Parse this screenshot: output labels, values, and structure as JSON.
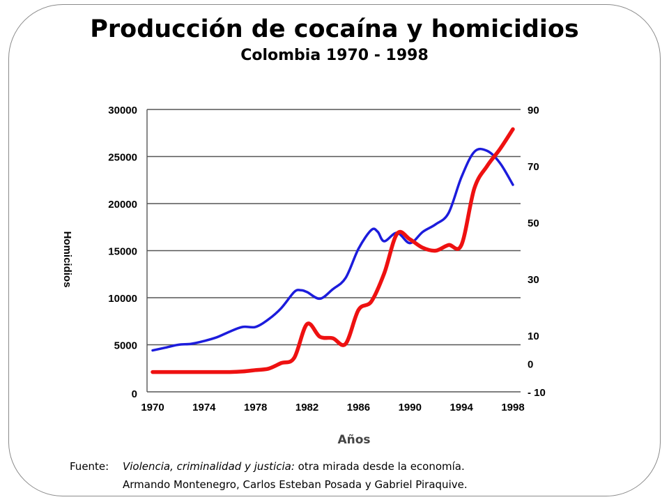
{
  "chart_data": {
    "type": "line",
    "title": "Producción de cocaína y homicidios",
    "subtitle": "Colombia 1970 - 1998",
    "xlabel": "Años",
    "ylabel_left": "Homicidios",
    "x_ticks": [
      "1970",
      "1974",
      "1978",
      "1982",
      "1986",
      "1990",
      "1994",
      "1998"
    ],
    "xlim": [
      1970,
      1998
    ],
    "y_left_ticks": [
      "30000",
      "25000",
      "20000",
      "15000",
      "10000",
      "5000",
      "0"
    ],
    "ylim_left": [
      0,
      30000
    ],
    "y_right_ticks": [
      "90",
      "70",
      "50",
      "30",
      "10",
      "0",
      "- 10"
    ],
    "ylim_right": [
      -10,
      90
    ],
    "grid": true,
    "series": [
      {
        "color": "#1c1cdc",
        "axis": "left",
        "x": [
          1970,
          1971,
          1972,
          1973,
          1974,
          1975,
          1976,
          1977,
          1978,
          1979,
          1980,
          1981,
          1981.5,
          1982,
          1983,
          1984,
          1985,
          1986,
          1987,
          1987.5,
          1988,
          1989,
          1990,
          1991,
          1992,
          1993,
          1994,
          1995,
          1996,
          1997,
          1998
        ],
        "values": [
          4400,
          4700,
          5000,
          5100,
          5400,
          5800,
          6400,
          6900,
          6900,
          7700,
          8900,
          10600,
          10800,
          10600,
          9900,
          10900,
          12100,
          15200,
          17200,
          17000,
          16000,
          16900,
          15800,
          17000,
          17800,
          19000,
          22800,
          25500,
          25600,
          24300,
          22000
        ]
      },
      {
        "color": "#ee1111",
        "axis": "right",
        "x": [
          1970,
          1972,
          1974,
          1976,
          1977,
          1978,
          1979,
          1980,
          1981,
          1982,
          1983,
          1984,
          1985,
          1986,
          1987,
          1988,
          1989,
          1990,
          1991,
          1992,
          1993,
          1994,
          1995,
          1996,
          1997,
          1998
        ],
        "values": [
          -3,
          -3,
          -3,
          -3,
          -2.8,
          -2.3,
          -1.8,
          0.2,
          2,
          14,
          9.5,
          9,
          7,
          19,
          22,
          32,
          46,
          44,
          41,
          40,
          42,
          42,
          62,
          70,
          76,
          83
        ]
      }
    ]
  },
  "source": {
    "label": "Fuente:",
    "book_title": "Violencia, criminalidad y justicia:",
    "book_rest": " otra mirada desde la economía.",
    "authors": "Armando Montenegro, Carlos Esteban Posada y Gabriel Piraquive."
  }
}
